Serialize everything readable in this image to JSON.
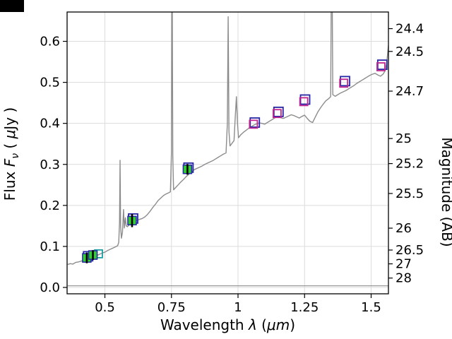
{
  "figure": {
    "background": "#ffffff",
    "corner_artifact_color": "#000000"
  },
  "chart_data": {
    "type": "line",
    "title": "",
    "xlabel": "Wavelength λ (μm)",
    "ylabel_left": "Flux Fν ( μJy )",
    "ylabel_right": "Magnitude (AB)",
    "labels": {
      "xlabel_pre": "Wavelength ",
      "xlabel_lambda": "λ",
      "xlabel_open": " (",
      "xlabel_um": "μm",
      "xlabel_close": ")",
      "ylabel_flux": "Flux ",
      "ylabel_F": "F",
      "ylabel_nu": "ν",
      "ylabel_open": " ( ",
      "ylabel_mu": "μ",
      "ylabel_jy": "Jy )",
      "ylabel_right": "Magnitude (AB)"
    },
    "xlim": [
      0.358,
      1.565
    ],
    "ylim": [
      -0.0155,
      0.6715
    ],
    "grid": true,
    "ab_zeropoint": 23.9,
    "x_ticks": [
      {
        "v": 0.5,
        "label": "0.5"
      },
      {
        "v": 0.75,
        "label": "0.75"
      },
      {
        "v": 1.0,
        "label": "1"
      },
      {
        "v": 1.25,
        "label": "1.25"
      },
      {
        "v": 1.5,
        "label": "1.5"
      }
    ],
    "y_ticks_left": [
      {
        "v": 0.0,
        "label": "0.0"
      },
      {
        "v": 0.1,
        "label": "0.1"
      },
      {
        "v": 0.2,
        "label": "0.2"
      },
      {
        "v": 0.3,
        "label": "0.3"
      },
      {
        "v": 0.4,
        "label": "0.4"
      },
      {
        "v": 0.5,
        "label": "0.5"
      },
      {
        "v": 0.6,
        "label": "0.6"
      }
    ],
    "y_ticks_right": [
      {
        "m": 24.4,
        "label": "24.4"
      },
      {
        "m": 24.5,
        "label": "24.5"
      },
      {
        "m": 24.7,
        "label": "24.7"
      },
      {
        "m": 25.0,
        "label": "25"
      },
      {
        "m": 25.2,
        "label": "25.2"
      },
      {
        "m": 25.5,
        "label": "25.5"
      },
      {
        "m": 26.0,
        "label": "26"
      },
      {
        "m": 26.5,
        "label": "26.5"
      },
      {
        "m": 27.0,
        "label": "27"
      },
      {
        "m": 28.0,
        "label": "28"
      }
    ],
    "colors": {
      "spectrum": "#8c8c8c",
      "grid": "#dcdcdc",
      "observed_fill": "#33cc33",
      "square_blue": "#2626a6",
      "square_magenta": "#c2258f",
      "square_teal": "#1b9e9e",
      "errorbar": "#000000",
      "spine": "#000000"
    },
    "series": {
      "spectrum": {
        "name": "model-spectrum",
        "color": "#8c8c8c",
        "points": [
          [
            0.36,
            0.056
          ],
          [
            0.37,
            0.058
          ],
          [
            0.38,
            0.057
          ],
          [
            0.39,
            0.061
          ],
          [
            0.4,
            0.062
          ],
          [
            0.41,
            0.064
          ],
          [
            0.42,
            0.066
          ],
          [
            0.43,
            0.068
          ],
          [
            0.44,
            0.071
          ],
          [
            0.45,
            0.073
          ],
          [
            0.46,
            0.075
          ],
          [
            0.47,
            0.078
          ],
          [
            0.48,
            0.081
          ],
          [
            0.49,
            0.084
          ],
          [
            0.5,
            0.086
          ],
          [
            0.51,
            0.09
          ],
          [
            0.52,
            0.093
          ],
          [
            0.53,
            0.096
          ],
          [
            0.54,
            0.099
          ],
          [
            0.548,
            0.102
          ],
          [
            0.552,
            0.11
          ],
          [
            0.555,
            0.16
          ],
          [
            0.557,
            0.31
          ],
          [
            0.559,
            0.15
          ],
          [
            0.562,
            0.12
          ],
          [
            0.566,
            0.135
          ],
          [
            0.57,
            0.19
          ],
          [
            0.573,
            0.145
          ],
          [
            0.577,
            0.17
          ],
          [
            0.58,
            0.15
          ],
          [
            0.585,
            0.148
          ],
          [
            0.59,
            0.152
          ],
          [
            0.6,
            0.156
          ],
          [
            0.61,
            0.16
          ],
          [
            0.62,
            0.163
          ],
          [
            0.63,
            0.166
          ],
          [
            0.64,
            0.168
          ],
          [
            0.65,
            0.172
          ],
          [
            0.66,
            0.178
          ],
          [
            0.67,
            0.186
          ],
          [
            0.68,
            0.195
          ],
          [
            0.69,
            0.203
          ],
          [
            0.7,
            0.212
          ],
          [
            0.71,
            0.218
          ],
          [
            0.72,
            0.224
          ],
          [
            0.73,
            0.228
          ],
          [
            0.74,
            0.231
          ],
          [
            0.746,
            0.233
          ],
          [
            0.75,
            0.33
          ],
          [
            0.752,
            0.9
          ],
          [
            0.755,
            0.32
          ],
          [
            0.758,
            0.238
          ],
          [
            0.765,
            0.243
          ],
          [
            0.775,
            0.25
          ],
          [
            0.785,
            0.257
          ],
          [
            0.795,
            0.263
          ],
          [
            0.805,
            0.27
          ],
          [
            0.815,
            0.276
          ],
          [
            0.825,
            0.281
          ],
          [
            0.835,
            0.287
          ],
          [
            0.845,
            0.29
          ],
          [
            0.855,
            0.293
          ],
          [
            0.865,
            0.296
          ],
          [
            0.875,
            0.3
          ],
          [
            0.885,
            0.303
          ],
          [
            0.895,
            0.306
          ],
          [
            0.905,
            0.309
          ],
          [
            0.915,
            0.313
          ],
          [
            0.925,
            0.317
          ],
          [
            0.935,
            0.321
          ],
          [
            0.945,
            0.325
          ],
          [
            0.955,
            0.328
          ],
          [
            0.96,
            0.4
          ],
          [
            0.963,
            0.66
          ],
          [
            0.966,
            0.38
          ],
          [
            0.97,
            0.345
          ],
          [
            0.978,
            0.352
          ],
          [
            0.985,
            0.358
          ],
          [
            0.99,
            0.42
          ],
          [
            0.994,
            0.465
          ],
          [
            0.998,
            0.4
          ],
          [
            1.002,
            0.365
          ],
          [
            1.01,
            0.372
          ],
          [
            1.02,
            0.378
          ],
          [
            1.03,
            0.383
          ],
          [
            1.04,
            0.388
          ],
          [
            1.05,
            0.392
          ],
          [
            1.06,
            0.396
          ],
          [
            1.07,
            0.399
          ],
          [
            1.08,
            0.401
          ],
          [
            1.09,
            0.4
          ],
          [
            1.1,
            0.398
          ],
          [
            1.11,
            0.402
          ],
          [
            1.12,
            0.406
          ],
          [
            1.13,
            0.41
          ],
          [
            1.14,
            0.414
          ],
          [
            1.15,
            0.417
          ],
          [
            1.16,
            0.414
          ],
          [
            1.17,
            0.412
          ],
          [
            1.18,
            0.415
          ],
          [
            1.19,
            0.418
          ],
          [
            1.2,
            0.421
          ],
          [
            1.21,
            0.419
          ],
          [
            1.22,
            0.416
          ],
          [
            1.23,
            0.413
          ],
          [
            1.24,
            0.417
          ],
          [
            1.25,
            0.42
          ],
          [
            1.26,
            0.412
          ],
          [
            1.27,
            0.405
          ],
          [
            1.28,
            0.402
          ],
          [
            1.29,
            0.415
          ],
          [
            1.3,
            0.428
          ],
          [
            1.31,
            0.438
          ],
          [
            1.32,
            0.447
          ],
          [
            1.33,
            0.455
          ],
          [
            1.34,
            0.46
          ],
          [
            1.348,
            0.465
          ],
          [
            1.352,
            0.9
          ],
          [
            1.356,
            0.47
          ],
          [
            1.365,
            0.466
          ],
          [
            1.375,
            0.47
          ],
          [
            1.385,
            0.474
          ],
          [
            1.395,
            0.477
          ],
          [
            1.405,
            0.48
          ],
          [
            1.415,
            0.484
          ],
          [
            1.425,
            0.488
          ],
          [
            1.435,
            0.492
          ],
          [
            1.445,
            0.497
          ],
          [
            1.455,
            0.501
          ],
          [
            1.465,
            0.505
          ],
          [
            1.475,
            0.509
          ],
          [
            1.485,
            0.513
          ],
          [
            1.495,
            0.517
          ],
          [
            1.505,
            0.52
          ],
          [
            1.515,
            0.522
          ],
          [
            1.525,
            0.518
          ],
          [
            1.535,
            0.515
          ],
          [
            1.545,
            0.52
          ],
          [
            1.552,
            0.528
          ],
          [
            1.558,
            0.545
          ],
          [
            1.562,
            0.57
          ],
          [
            1.565,
            0.59
          ]
        ]
      },
      "noise": {
        "name": "noise-spectrum",
        "color": "#8c8c8c",
        "points": [
          [
            0.36,
            0.004
          ],
          [
            1.565,
            0.004
          ]
        ]
      },
      "observed": {
        "name": "observed-photometry",
        "marker": "square-filled",
        "fill": "#33cc33",
        "edge": "#2626a6",
        "points": [
          {
            "x": 0.432,
            "y": 0.072,
            "yerr": 0.013
          },
          {
            "x": 0.455,
            "y": 0.079,
            "yerr": 0.012
          },
          {
            "x": 0.602,
            "y": 0.163,
            "yerr": 0.016
          },
          {
            "x": 0.81,
            "y": 0.288,
            "yerr": 0.013
          }
        ]
      },
      "model_blue": {
        "name": "model-photometry-blue",
        "marker": "square-open",
        "edge": "#2626a6",
        "points": [
          {
            "x": 0.437,
            "y": 0.076
          },
          {
            "x": 0.606,
            "y": 0.168
          },
          {
            "x": 0.814,
            "y": 0.292
          },
          {
            "x": 1.063,
            "y": 0.402
          },
          {
            "x": 1.152,
            "y": 0.428
          },
          {
            "x": 1.252,
            "y": 0.458
          },
          {
            "x": 1.402,
            "y": 0.503
          },
          {
            "x": 1.542,
            "y": 0.543
          }
        ]
      },
      "model_magenta": {
        "name": "model-photometry-magenta",
        "marker": "square-open",
        "edge": "#c2258f",
        "points": [
          {
            "x": 1.058,
            "y": 0.398
          },
          {
            "x": 1.147,
            "y": 0.424
          },
          {
            "x": 1.247,
            "y": 0.453
          },
          {
            "x": 1.397,
            "y": 0.498
          },
          {
            "x": 1.537,
            "y": 0.538
          }
        ]
      },
      "extra_teal": {
        "name": "photometry-teal",
        "marker": "square-open",
        "edge": "#1b9e9e",
        "points": [
          {
            "x": 0.476,
            "y": 0.082
          }
        ]
      }
    }
  }
}
